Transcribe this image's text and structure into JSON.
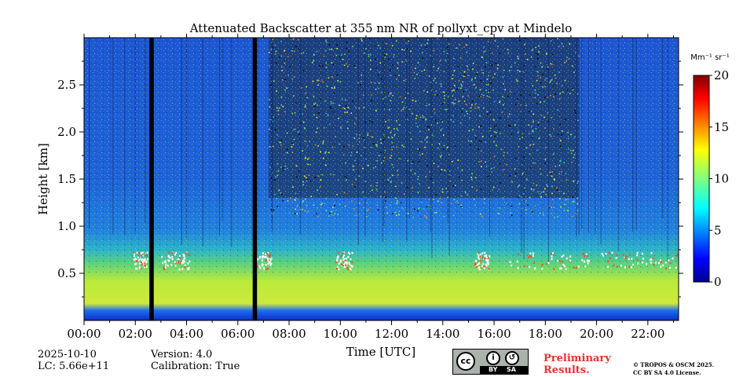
{
  "chart_data": {
    "type": "heatmap",
    "title": "Attenuated Backscatter at 355 nm NR of pollyxt_cpv at Mindelo",
    "xlabel": "Time [UTC]",
    "ylabel": "Height [km]",
    "xlim": [
      0,
      23.2
    ],
    "ylim": [
      0,
      3.0
    ],
    "x_ticks": [
      "00:00",
      "02:00",
      "04:00",
      "06:00",
      "08:00",
      "10:00",
      "12:00",
      "14:00",
      "16:00",
      "18:00",
      "20:00",
      "22:00"
    ],
    "y_ticks": [
      "0.5",
      "1.0",
      "1.5",
      "2.0",
      "2.5"
    ],
    "colorbar": {
      "label": "Mm⁻¹ sr⁻¹",
      "min": 0,
      "max": 20,
      "ticks": [
        "0",
        "5",
        "10",
        "15",
        "20"
      ],
      "colormap": "jet"
    },
    "no_data_intervals_utc": [
      [
        2.55,
        2.72
      ],
      [
        6.58,
        6.75
      ]
    ],
    "cloud_layer_height_km": 0.6,
    "boundary_layer_top_km": 0.65
  },
  "footer": {
    "date": "2025-10-10",
    "lc": "LC: 5.66e+11",
    "version": "Version: 4.0",
    "calibration": "Calibration: True",
    "license_badge": {
      "cc": "cc",
      "by": "BY",
      "sa": "SA"
    },
    "preliminary": [
      "Preliminary",
      "Results."
    ],
    "copyright": [
      "© TROPOS & OSCM 2025.",
      "CC BY SA 4.0 License."
    ]
  },
  "colors": {
    "no_data": "#000000",
    "clear_air": "#1f54d6",
    "cloud": "#ffffff",
    "preliminary_text": "#e8312f"
  }
}
